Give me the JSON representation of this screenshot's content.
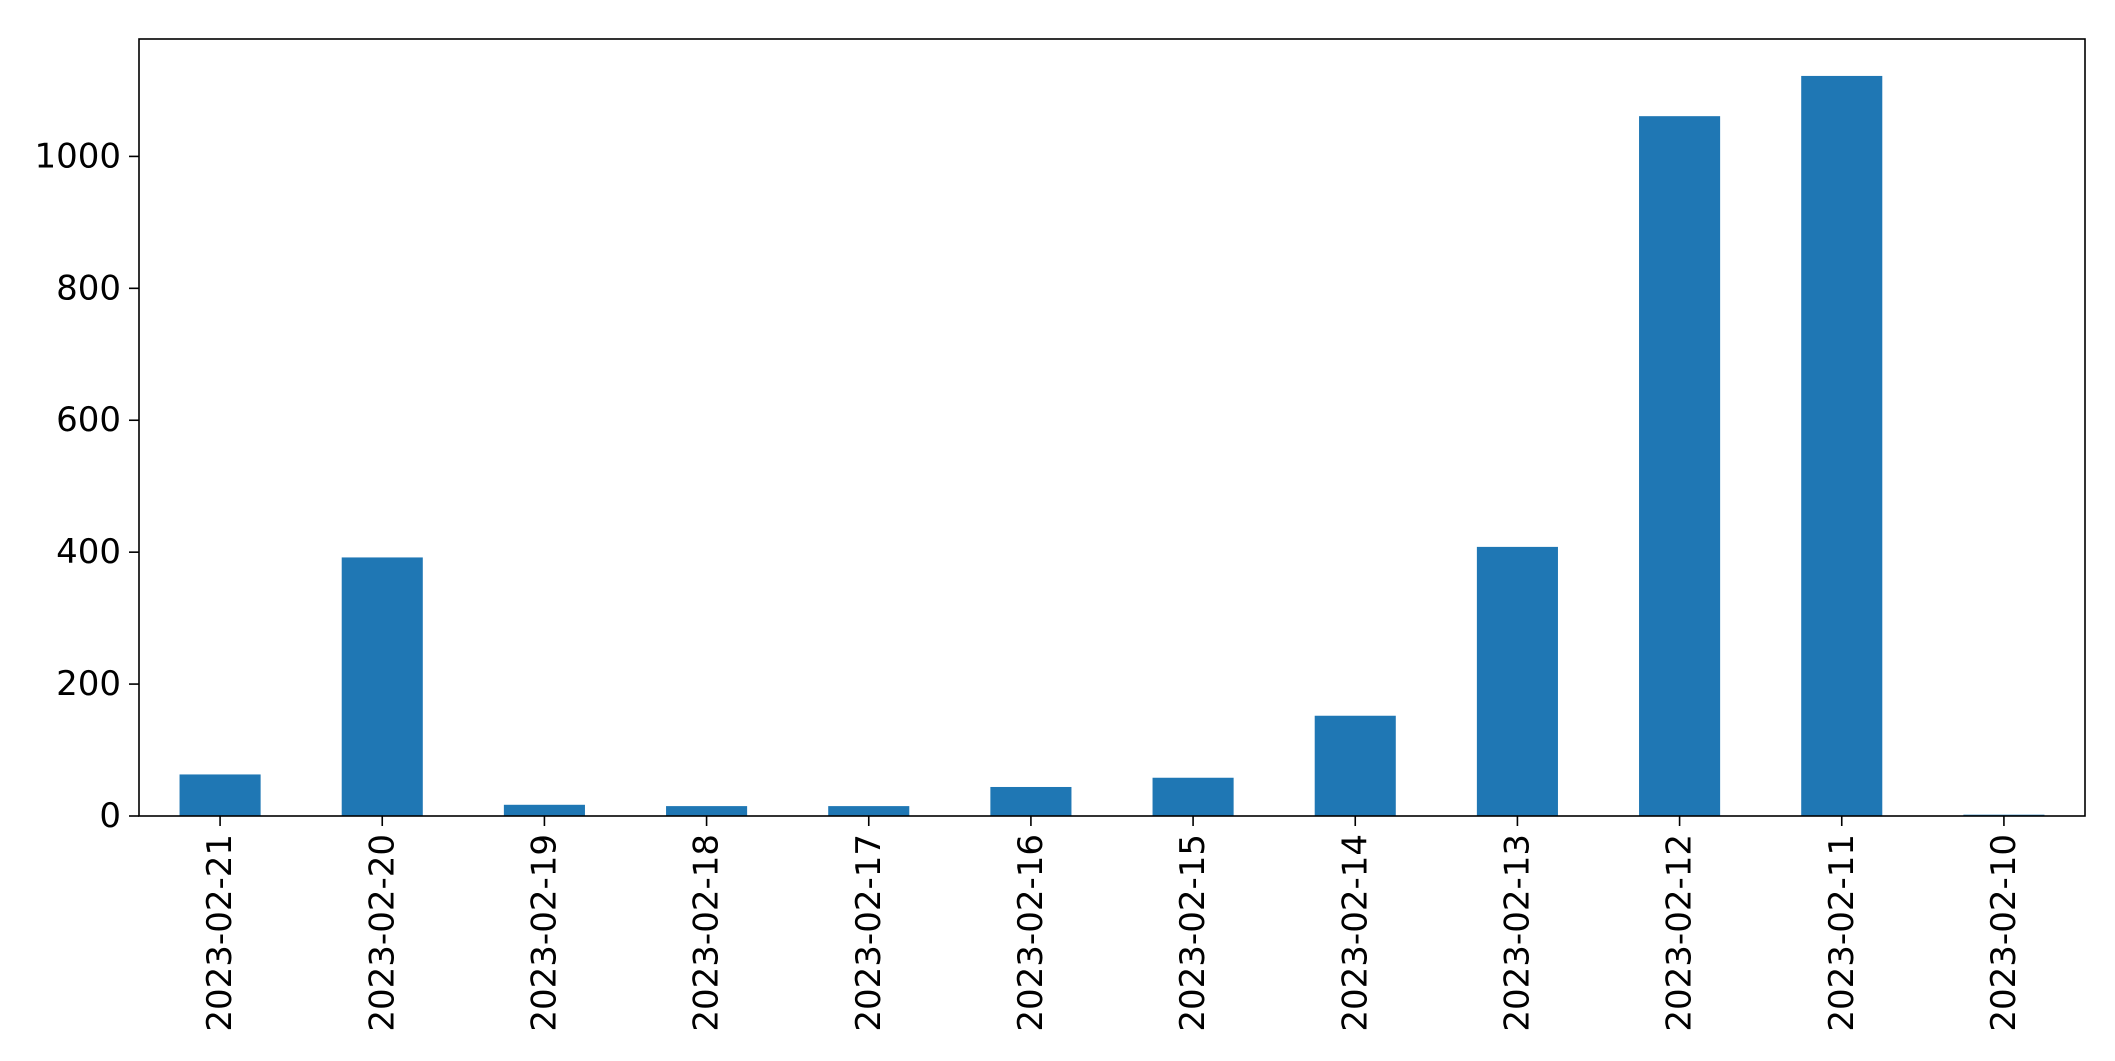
{
  "chart_data": {
    "type": "bar",
    "title": "",
    "xlabel": "",
    "ylabel": "",
    "categories": [
      "2023-02-21",
      "2023-02-20",
      "2023-02-19",
      "2023-02-18",
      "2023-02-17",
      "2023-02-16",
      "2023-02-15",
      "2023-02-14",
      "2023-02-13",
      "2023-02-12",
      "2023-02-11",
      "2023-02-10"
    ],
    "values": [
      63,
      392,
      17,
      15,
      15,
      44,
      58,
      152,
      408,
      1061,
      1122,
      2
    ],
    "ylim": [
      0,
      1178
    ],
    "yticks": [
      0,
      200,
      400,
      600,
      800,
      1000
    ],
    "grid": false,
    "legend": "none",
    "bar_color": "#1f77b4"
  }
}
